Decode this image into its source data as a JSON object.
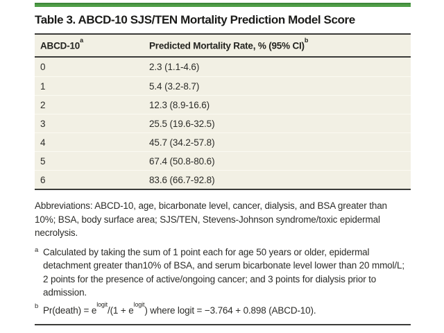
{
  "colors": {
    "accent_green": "#4c9b45",
    "table_background": "#f2f0e4",
    "rule_dark": "#3a3a38",
    "text": "#2b2b28"
  },
  "title": "Table 3. ABCD-10 SJS/TEN Mortality Prediction Model Score",
  "table": {
    "columns": [
      {
        "label": "ABCD-10",
        "sup": "a"
      },
      {
        "label": "Predicted Mortality Rate, % (95% CI)",
        "sup": "b"
      }
    ],
    "rows": [
      {
        "score": "0",
        "rate": "2.3 (1.1-4.6)"
      },
      {
        "score": "1",
        "rate": "5.4 (3.2-8.7)"
      },
      {
        "score": "2",
        "rate": "12.3 (8.9-16.6)"
      },
      {
        "score": "3",
        "rate": "25.5 (19.6-32.5)"
      },
      {
        "score": "4",
        "rate": "45.7 (34.2-57.8)"
      },
      {
        "score": "5",
        "rate": "67.4 (50.8-80.6)"
      },
      {
        "score": "6",
        "rate": "83.6 (66.7-92.8)"
      }
    ]
  },
  "abbreviations": "Abbreviations: ABCD-10, age, bicarbonate level, cancer, dialysis, and BSA greater than 10%; BSA, body surface area; SJS/TEN, Stevens-Johnson syndrome/toxic epidermal necrolysis.",
  "footnote_a": {
    "marker": "a",
    "text": "Calculated by taking the sum of 1 point each for age 50 years or older, epidermal detachment greater than10% of BSA, and serum bicarbonate level lower than 20 mmol/L; 2 points for the presence of active/ongoing cancer; and 3 points for dialysis prior to admission."
  },
  "footnote_b": {
    "marker": "b",
    "part1": "Pr(death) = e",
    "sup1": "logit",
    "part2": "/(1 + e",
    "sup2": "logit",
    "part3": ") where logit = −3.764 + 0.898 (ABCD-10)."
  }
}
